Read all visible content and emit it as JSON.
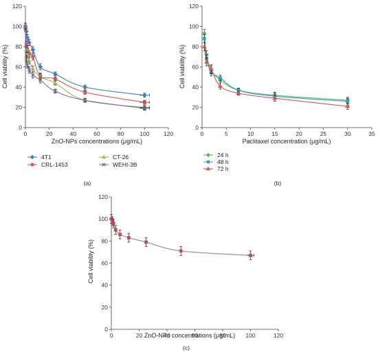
{
  "colors": {
    "4T1": "#3f7fbf",
    "CRL-1453": "#d9534f",
    "CT-26": "#9bbb59",
    "WEHI-3B": "#8064a2",
    "24h": "#5cb85c",
    "48h": "#31a0c8",
    "72h": "#d9534f",
    "c": "#c0504d",
    "c_line": "#9b7fb0"
  },
  "chart_data": [
    {
      "type": "line",
      "panel_label": "(a)",
      "xlabel": "ZnO-NPs concentrations (μg/mL)",
      "ylabel": "Cell viability (%)",
      "xlim": [
        0,
        120
      ],
      "ylim": [
        0,
        120
      ],
      "x_ticks": [
        "0",
        "20",
        "40",
        "60",
        "80",
        "100",
        "120"
      ],
      "y_ticks": [
        "0",
        "20",
        "40",
        "60",
        "80",
        "100",
        "120"
      ],
      "x": [
        0,
        0.78,
        1.56,
        3.125,
        6.25,
        12.5,
        25,
        50,
        100
      ],
      "legend_position": "bottom",
      "series": [
        {
          "name": "4T1",
          "color_key": "4T1",
          "marker": "diamond",
          "values": [
            100,
            95,
            89,
            84,
            77,
            60,
            53,
            40,
            32
          ],
          "err": [
            3,
            3,
            3,
            3,
            3,
            3,
            2,
            2,
            2
          ],
          "xerr": 7
        },
        {
          "name": "CRL-1453",
          "color_key": "CRL-1453",
          "marker": "square",
          "values": [
            98,
            82,
            78,
            73,
            70,
            51,
            48,
            35,
            25
          ],
          "err": [
            3,
            3,
            3,
            3,
            3,
            3,
            2,
            2,
            2
          ],
          "xerr": 7
        },
        {
          "name": "CT-26",
          "color_key": "CT-26",
          "marker": "triangle",
          "values": [
            100,
            77,
            72,
            66,
            58,
            50,
            44,
            27,
            20
          ],
          "err": [
            3,
            3,
            3,
            3,
            3,
            3,
            2,
            2,
            2
          ],
          "xerr": 7
        },
        {
          "name": "WEHI-3B",
          "color_key": "WEHI-3B",
          "marker": "x",
          "values": [
            100,
            68,
            62,
            57,
            52,
            47,
            36,
            27,
            19
          ],
          "err": [
            3,
            3,
            3,
            3,
            3,
            3,
            2,
            2,
            2
          ],
          "xerr": 7
        }
      ]
    },
    {
      "type": "line",
      "panel_label": "(b)",
      "xlabel": "Paclitaxel concentration (μg/mL)",
      "ylabel": "Cell viability (%)",
      "xlim": [
        0,
        35
      ],
      "ylim": [
        0,
        120
      ],
      "x_ticks": [
        "0",
        "5",
        "10",
        "15",
        "20",
        "25",
        "30",
        "35"
      ],
      "y_ticks": [
        "0",
        "20",
        "40",
        "60",
        "80",
        "100",
        "120"
      ],
      "x": [
        0.47,
        0.94,
        1.875,
        3.75,
        7.5,
        15,
        30
      ],
      "legend_position": "bottom",
      "series": [
        {
          "name": "24 h",
          "color_key": "24h",
          "marker": "diamond",
          "values": [
            93,
            72,
            57,
            47,
            37,
            32,
            27
          ],
          "err": [
            4,
            4,
            4,
            3,
            2,
            3,
            3
          ],
          "xerr": 2
        },
        {
          "name": "48 h",
          "color_key": "48h",
          "marker": "square",
          "values": [
            88,
            68,
            55,
            49,
            37,
            31,
            26
          ],
          "err": [
            4,
            4,
            4,
            3,
            2,
            3,
            3
          ],
          "xerr": 2
        },
        {
          "name": "72 h",
          "color_key": "72h",
          "marker": "triangle",
          "values": [
            80,
            65,
            58,
            41,
            34,
            29,
            21
          ],
          "err": [
            4,
            4,
            4,
            3,
            2,
            3,
            3
          ],
          "xerr": 2
        }
      ]
    },
    {
      "type": "line",
      "panel_label": "(c)",
      "xlabel": "ZnO-NPs concentrations (μg/mL)",
      "ylabel": "Cell viability (%)",
      "xlim": [
        0,
        120
      ],
      "ylim": [
        0,
        120
      ],
      "x_ticks": [
        "0",
        "20",
        "40",
        "60",
        "80",
        "100",
        "120"
      ],
      "y_ticks": [
        "0",
        "20",
        "40",
        "60",
        "80",
        "100",
        "120"
      ],
      "x": [
        0,
        0.78,
        1.56,
        3.125,
        6.25,
        12.5,
        25,
        50,
        100
      ],
      "series": [
        {
          "color_key": "c",
          "marker": "square",
          "values": [
            100,
            98,
            96,
            90,
            86,
            83,
            79,
            71,
            67
          ],
          "err": [
            4,
            4,
            4,
            4,
            4,
            4,
            4,
            4,
            4
          ],
          "xerr": 5
        }
      ]
    }
  ]
}
